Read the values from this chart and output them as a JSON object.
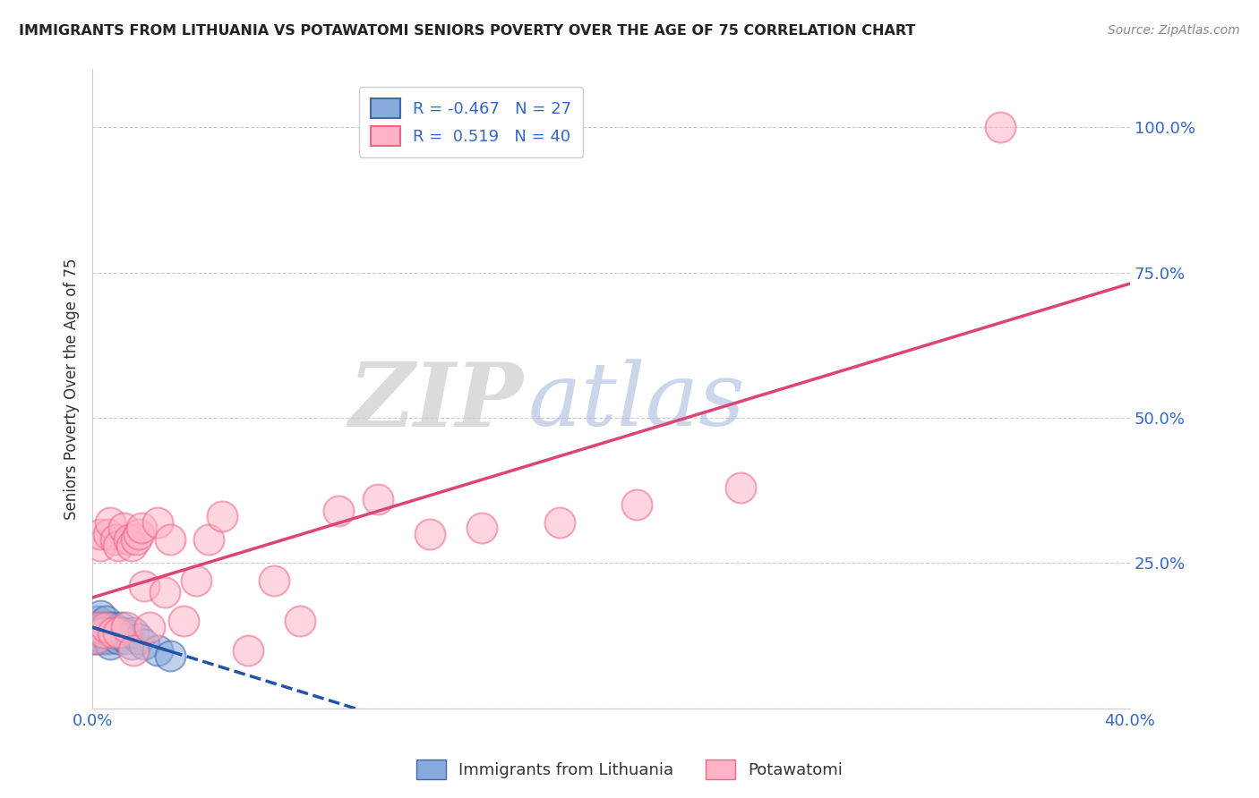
{
  "title": "IMMIGRANTS FROM LITHUANIA VS POTAWATOMI SENIORS POVERTY OVER THE AGE OF 75 CORRELATION CHART",
  "source": "Source: ZipAtlas.com",
  "ylabel": "Seniors Poverty Over the Age of 75",
  "xlim": [
    0.0,
    0.4
  ],
  "ylim": [
    0.0,
    1.1
  ],
  "xticks": [
    0.0,
    0.1,
    0.2,
    0.3,
    0.4
  ],
  "xticklabels": [
    "0.0%",
    "",
    "",
    "",
    "40.0%"
  ],
  "yticks": [
    0.0,
    0.25,
    0.5,
    0.75,
    1.0
  ],
  "yticklabels": [
    "",
    "25.0%",
    "50.0%",
    "75.0%",
    "100.0%"
  ],
  "blue_R": -0.467,
  "blue_N": 27,
  "pink_R": 0.519,
  "pink_N": 40,
  "blue_color": "#88AADD",
  "pink_color": "#FFB3C6",
  "blue_edge_color": "#4466AA",
  "pink_edge_color": "#EE6688",
  "blue_line_color": "#2255AA",
  "pink_line_color": "#DD4477",
  "legend_label_blue": "Immigrants from Lithuania",
  "legend_label_pink": "Potawatomi",
  "blue_points_x": [
    0.0,
    0.001,
    0.001,
    0.002,
    0.002,
    0.003,
    0.003,
    0.004,
    0.004,
    0.005,
    0.005,
    0.006,
    0.006,
    0.007,
    0.007,
    0.008,
    0.009,
    0.01,
    0.011,
    0.012,
    0.013,
    0.015,
    0.016,
    0.018,
    0.02,
    0.025,
    0.03
  ],
  "blue_points_y": [
    0.12,
    0.14,
    0.13,
    0.15,
    0.12,
    0.16,
    0.13,
    0.14,
    0.12,
    0.15,
    0.13,
    0.14,
    0.12,
    0.13,
    0.11,
    0.14,
    0.13,
    0.12,
    0.14,
    0.13,
    0.12,
    0.11,
    0.13,
    0.12,
    0.11,
    0.1,
    0.09
  ],
  "pink_points_x": [
    0.001,
    0.002,
    0.003,
    0.003,
    0.004,
    0.005,
    0.006,
    0.007,
    0.008,
    0.009,
    0.01,
    0.01,
    0.012,
    0.013,
    0.014,
    0.015,
    0.016,
    0.017,
    0.018,
    0.019,
    0.02,
    0.022,
    0.025,
    0.028,
    0.03,
    0.035,
    0.04,
    0.045,
    0.05,
    0.06,
    0.07,
    0.08,
    0.095,
    0.11,
    0.13,
    0.15,
    0.18,
    0.21,
    0.25,
    0.35
  ],
  "pink_points_y": [
    0.12,
    0.14,
    0.28,
    0.3,
    0.13,
    0.14,
    0.3,
    0.32,
    0.13,
    0.29,
    0.13,
    0.28,
    0.31,
    0.14,
    0.29,
    0.28,
    0.1,
    0.29,
    0.3,
    0.31,
    0.21,
    0.14,
    0.32,
    0.2,
    0.29,
    0.15,
    0.22,
    0.29,
    0.33,
    0.1,
    0.22,
    0.15,
    0.34,
    0.36,
    0.3,
    0.31,
    0.32,
    0.35,
    0.38,
    1.0
  ]
}
